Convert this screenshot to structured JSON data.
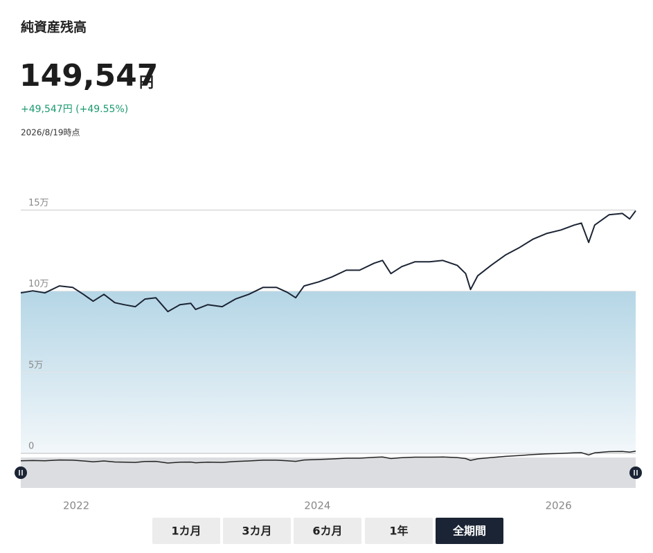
{
  "header": {
    "title": "純資産残高",
    "value": "149,547",
    "unit": "円",
    "change": "+49,547円 (+49.55%)",
    "date": "2026/8/19時点"
  },
  "chart_data": {
    "type": "line",
    "x": [
      2021.54,
      2021.64,
      2021.74,
      2021.86,
      2021.97,
      2022.06,
      2022.14,
      2022.23,
      2022.32,
      2022.4,
      2022.49,
      2022.57,
      2022.66,
      2022.76,
      2022.86,
      2022.95,
      2022.99,
      2023.09,
      2023.21,
      2023.32,
      2023.43,
      2023.55,
      2023.66,
      2023.75,
      2023.82,
      2023.89,
      2024.01,
      2024.12,
      2024.24,
      2024.35,
      2024.47,
      2024.54,
      2024.61,
      2024.7,
      2024.81,
      2024.93,
      2025.04,
      2025.16,
      2025.23,
      2025.27,
      2025.33,
      2025.44,
      2025.56,
      2025.67,
      2025.79,
      2025.9,
      2026.02,
      2026.13,
      2026.19,
      2026.25,
      2026.3,
      2026.42,
      2026.53,
      2026.59,
      2026.64
    ],
    "series": [
      {
        "color": "#1b2434",
        "values": [
          98900,
          100200,
          98900,
          103200,
          102300,
          98000,
          93800,
          98000,
          92900,
          91600,
          90400,
          95100,
          95900,
          87400,
          91600,
          92500,
          88700,
          91600,
          90400,
          95100,
          98000,
          102300,
          102300,
          99300,
          95900,
          103200,
          105700,
          108700,
          112900,
          112900,
          117200,
          118900,
          110800,
          115100,
          118100,
          118100,
          118900,
          115900,
          110800,
          101000,
          109500,
          115900,
          122300,
          126600,
          132100,
          135500,
          137700,
          140700,
          141900,
          130000,
          140700,
          147100,
          147900,
          144500,
          149547
        ]
      }
    ],
    "baseline": 100000,
    "area_color": "#b5d6e6",
    "ylim": [
      0,
      160000
    ],
    "yticks": [
      {
        "value": 0,
        "label": "0"
      },
      {
        "value": 50000,
        "label": "5万"
      },
      {
        "value": 100000,
        "label": "10万"
      },
      {
        "value": 150000,
        "label": "15万"
      }
    ],
    "xlim": [
      2021.54,
      2026.64
    ],
    "xticks": [
      2022,
      2024,
      2026
    ],
    "grid": true
  },
  "buttons": {
    "labels": [
      "1カ月",
      "3カ月",
      "6カ月",
      "1年",
      "全期間"
    ],
    "active": 4
  }
}
